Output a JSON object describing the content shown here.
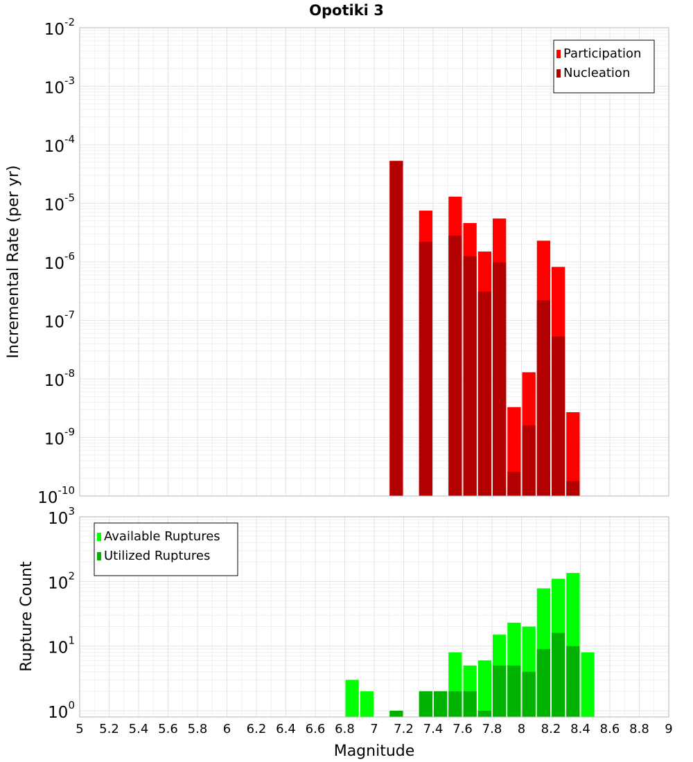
{
  "chart_data": [
    {
      "type": "bar",
      "title": "Opotiki 3",
      "ylabel": "Incremental Rate (per yr)",
      "xlabel": "",
      "xlim": [
        5,
        9
      ],
      "ylim": [
        1e-10,
        0.01
      ],
      "yscale": "log",
      "grid": true,
      "legend_position": "top-right",
      "bar_width": 0.1,
      "series": [
        {
          "name": "Participation",
          "color": "#ff0000",
          "x": [
            7.15,
            7.35,
            7.55,
            7.65,
            7.75,
            7.85,
            7.95,
            8.05,
            8.15,
            8.25,
            8.35
          ],
          "values": [
            5.3e-05,
            7.5e-06,
            1.3e-05,
            4.6e-06,
            1.5e-06,
            5.5e-06,
            3.3e-09,
            1.3e-08,
            2.3e-06,
            8.2e-07,
            2.7e-09
          ]
        },
        {
          "name": "Nucleation",
          "color": "#b20000",
          "x": [
            7.15,
            7.35,
            7.55,
            7.65,
            7.75,
            7.85,
            7.95,
            8.05,
            8.15,
            8.25,
            8.35
          ],
          "values": [
            5.3e-05,
            2.2e-06,
            2.8e-06,
            1.25e-06,
            3.1e-07,
            9.8e-07,
            2.6e-10,
            1.6e-09,
            2.2e-07,
            5.3e-08,
            1.8e-10
          ]
        }
      ]
    },
    {
      "type": "bar",
      "title": "",
      "ylabel": "Rupture Count",
      "xlabel": "Magnitude",
      "xlim": [
        5,
        9
      ],
      "ylim": [
        0.8,
        1000
      ],
      "yscale": "log",
      "grid": true,
      "legend_position": "top-left",
      "bar_width": 0.1,
      "x_ticks": [
        "5",
        "5.2",
        "5.4",
        "5.6",
        "5.8",
        "6",
        "6.2",
        "6.4",
        "6.6",
        "6.8",
        "7",
        "7.2",
        "7.4",
        "7.6",
        "7.8",
        "8",
        "8.2",
        "8.4",
        "8.6",
        "8.8",
        "9"
      ],
      "series": [
        {
          "name": "Available Ruptures",
          "color": "#00ff00",
          "x": [
            6.85,
            6.95,
            7.15,
            7.35,
            7.45,
            7.55,
            7.65,
            7.75,
            7.85,
            7.95,
            8.05,
            8.15,
            8.25,
            8.35,
            8.45
          ],
          "values": [
            3,
            2,
            1,
            2,
            2,
            8,
            5,
            6,
            15,
            23,
            20,
            78,
            110,
            135,
            8
          ]
        },
        {
          "name": "Utilized Ruptures",
          "color": "#00b200",
          "x": [
            7.15,
            7.35,
            7.45,
            7.55,
            7.65,
            7.75,
            7.85,
            7.95,
            8.05,
            8.15,
            8.25,
            8.35
          ],
          "values": [
            1,
            2,
            2,
            2,
            2,
            1,
            5,
            5,
            4,
            9,
            16,
            10
          ]
        }
      ]
    }
  ],
  "y_ticks_top": [
    {
      "base": "10",
      "exp": "-2"
    },
    {
      "base": "10",
      "exp": "-3"
    },
    {
      "base": "10",
      "exp": "-4"
    },
    {
      "base": "10",
      "exp": "-5"
    },
    {
      "base": "10",
      "exp": "-6"
    },
    {
      "base": "10",
      "exp": "-7"
    },
    {
      "base": "10",
      "exp": "-8"
    },
    {
      "base": "10",
      "exp": "-9"
    },
    {
      "base": "10",
      "exp": "-10"
    }
  ],
  "y_ticks_bottom": [
    {
      "base": "10",
      "exp": "3"
    },
    {
      "base": "10",
      "exp": "2"
    },
    {
      "base": "10",
      "exp": "1"
    },
    {
      "base": "10",
      "exp": "0"
    }
  ]
}
